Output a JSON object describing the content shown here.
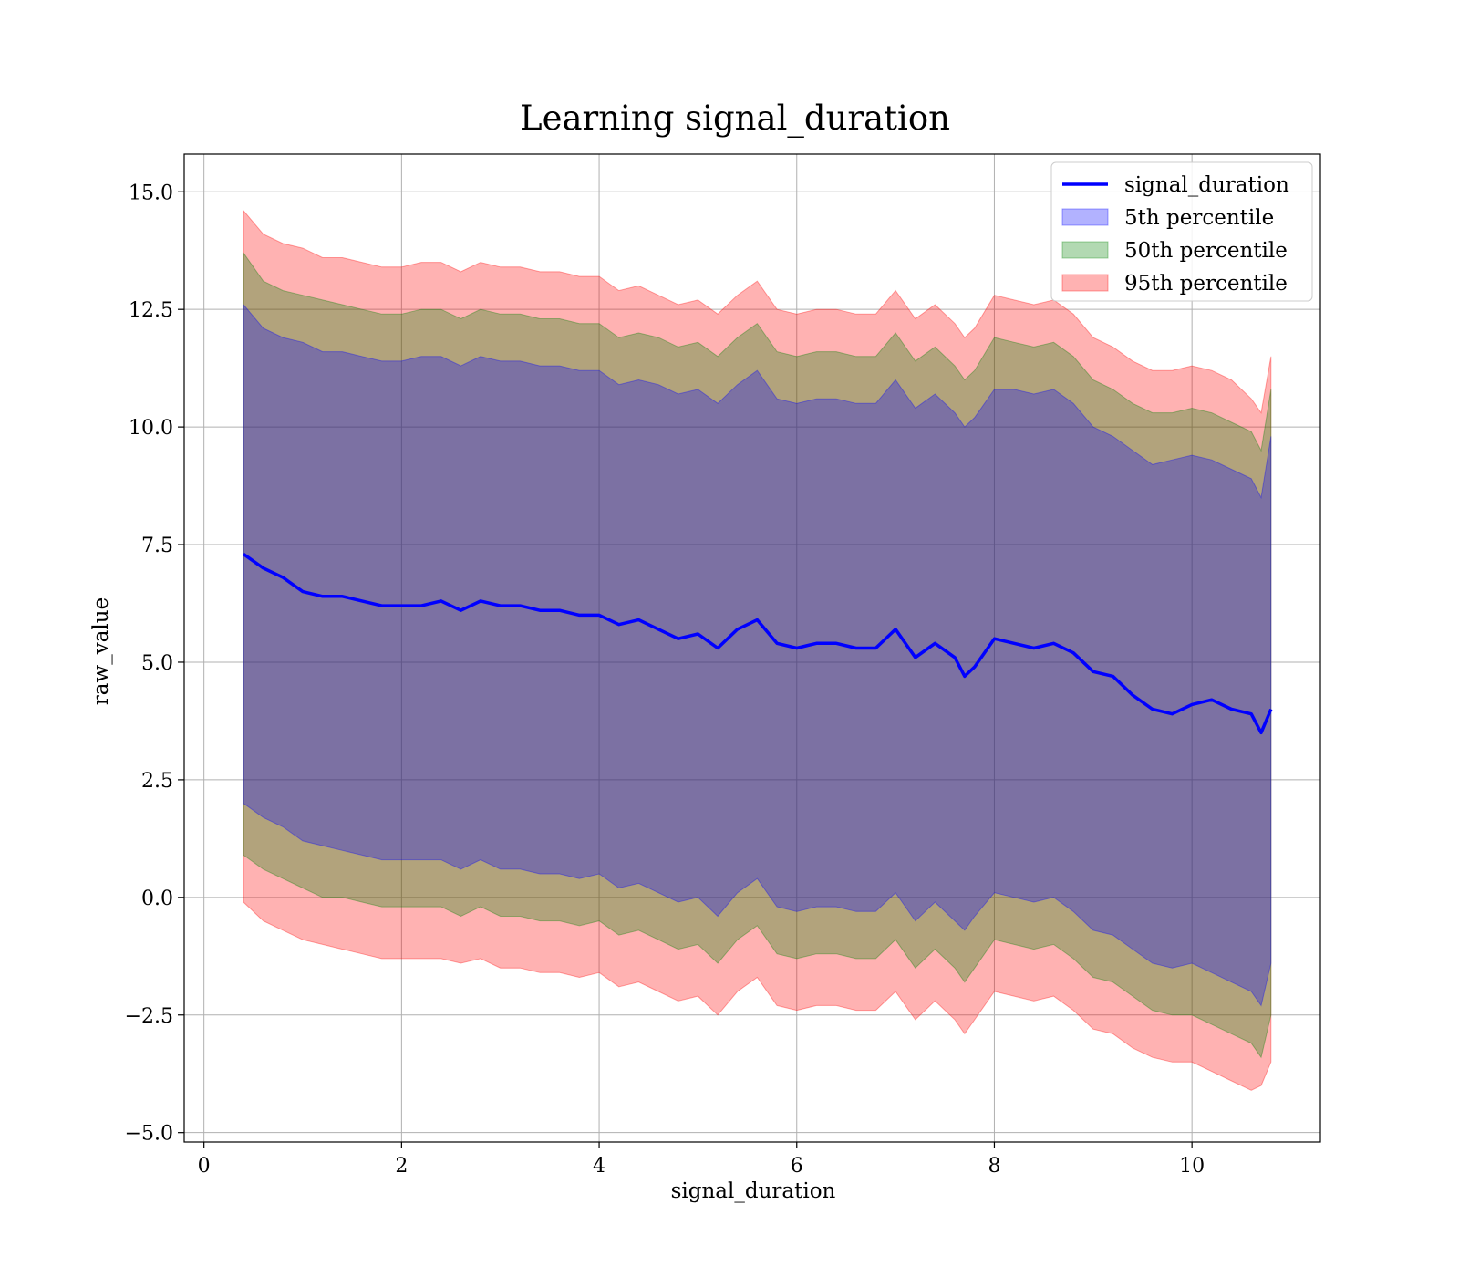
{
  "chart_data": {
    "type": "area",
    "title": "Learning signal_duration",
    "xlabel": "signal_duration",
    "ylabel": "raw_value",
    "xlim": [
      -0.2,
      11.3
    ],
    "ylim": [
      -5.2,
      15.8
    ],
    "x_ticks": [
      0,
      2,
      4,
      6,
      8,
      10
    ],
    "x_tick_labels": [
      "0",
      "2",
      "4",
      "6",
      "8",
      "10"
    ],
    "y_ticks": [
      -5.0,
      -2.5,
      0.0,
      2.5,
      5.0,
      7.5,
      10.0,
      12.5,
      15.0
    ],
    "y_tick_labels": [
      "−5.0",
      "−2.5",
      "0.0",
      "2.5",
      "5.0",
      "7.5",
      "10.0",
      "12.5",
      "15.0"
    ],
    "grid": true,
    "legend_position": "top-right",
    "x": [
      0.4,
      0.6,
      0.8,
      1.0,
      1.2,
      1.4,
      1.6,
      1.8,
      2.0,
      2.2,
      2.4,
      2.6,
      2.8,
      3.0,
      3.2,
      3.4,
      3.6,
      3.8,
      4.0,
      4.2,
      4.4,
      4.6,
      4.8,
      5.0,
      5.2,
      5.4,
      5.6,
      5.8,
      6.0,
      6.2,
      6.4,
      6.6,
      6.8,
      7.0,
      7.2,
      7.4,
      7.6,
      7.7,
      7.8,
      8.0,
      8.2,
      8.4,
      8.6,
      8.8,
      9.0,
      9.2,
      9.4,
      9.6,
      9.8,
      10.0,
      10.2,
      10.4,
      10.6,
      10.7,
      10.8
    ],
    "series": [
      {
        "name": "signal_duration",
        "kind": "line",
        "color": "#0000ff",
        "values": [
          7.3,
          7.0,
          6.8,
          6.5,
          6.4,
          6.4,
          6.3,
          6.2,
          6.2,
          6.2,
          6.3,
          6.1,
          6.3,
          6.2,
          6.2,
          6.1,
          6.1,
          6.0,
          6.0,
          5.8,
          5.9,
          5.7,
          5.5,
          5.6,
          5.3,
          5.7,
          5.9,
          5.4,
          5.3,
          5.4,
          5.4,
          5.3,
          5.3,
          5.7,
          5.1,
          5.4,
          5.1,
          4.7,
          4.9,
          5.5,
          5.4,
          5.3,
          5.4,
          5.2,
          4.8,
          4.7,
          4.3,
          4.0,
          3.9,
          4.1,
          4.2,
          4.0,
          3.9,
          3.5,
          4.0
        ]
      },
      {
        "name": "5th percentile",
        "kind": "band",
        "color": "#0000ff",
        "upper": [
          12.6,
          12.1,
          11.9,
          11.8,
          11.6,
          11.6,
          11.5,
          11.4,
          11.4,
          11.5,
          11.5,
          11.3,
          11.5,
          11.4,
          11.4,
          11.3,
          11.3,
          11.2,
          11.2,
          10.9,
          11.0,
          10.9,
          10.7,
          10.8,
          10.5,
          10.9,
          11.2,
          10.6,
          10.5,
          10.6,
          10.6,
          10.5,
          10.5,
          11.0,
          10.4,
          10.7,
          10.3,
          10.0,
          10.2,
          10.8,
          10.8,
          10.7,
          10.8,
          10.5,
          10.0,
          9.8,
          9.5,
          9.2,
          9.3,
          9.4,
          9.3,
          9.1,
          8.9,
          8.5,
          9.8
        ],
        "lower": [
          2.0,
          1.7,
          1.5,
          1.2,
          1.1,
          1.0,
          0.9,
          0.8,
          0.8,
          0.8,
          0.8,
          0.6,
          0.8,
          0.6,
          0.6,
          0.5,
          0.5,
          0.4,
          0.5,
          0.2,
          0.3,
          0.1,
          -0.1,
          0.0,
          -0.4,
          0.1,
          0.4,
          -0.2,
          -0.3,
          -0.2,
          -0.2,
          -0.3,
          -0.3,
          0.1,
          -0.5,
          -0.1,
          -0.5,
          -0.7,
          -0.4,
          0.1,
          0.0,
          -0.1,
          0.0,
          -0.3,
          -0.7,
          -0.8,
          -1.1,
          -1.4,
          -1.5,
          -1.4,
          -1.6,
          -1.8,
          -2.0,
          -2.3,
          -1.4
        ]
      },
      {
        "name": "50th percentile",
        "kind": "band",
        "color": "#008000",
        "upper": [
          13.7,
          13.1,
          12.9,
          12.8,
          12.7,
          12.6,
          12.5,
          12.4,
          12.4,
          12.5,
          12.5,
          12.3,
          12.5,
          12.4,
          12.4,
          12.3,
          12.3,
          12.2,
          12.2,
          11.9,
          12.0,
          11.9,
          11.7,
          11.8,
          11.5,
          11.9,
          12.2,
          11.6,
          11.5,
          11.6,
          11.6,
          11.5,
          11.5,
          12.0,
          11.4,
          11.7,
          11.3,
          11.0,
          11.2,
          11.9,
          11.8,
          11.7,
          11.8,
          11.5,
          11.0,
          10.8,
          10.5,
          10.3,
          10.3,
          10.4,
          10.3,
          10.1,
          9.9,
          9.5,
          10.8
        ],
        "lower": [
          0.9,
          0.6,
          0.4,
          0.2,
          0.0,
          0.0,
          -0.1,
          -0.2,
          -0.2,
          -0.2,
          -0.2,
          -0.4,
          -0.2,
          -0.4,
          -0.4,
          -0.5,
          -0.5,
          -0.6,
          -0.5,
          -0.8,
          -0.7,
          -0.9,
          -1.1,
          -1.0,
          -1.4,
          -0.9,
          -0.6,
          -1.2,
          -1.3,
          -1.2,
          -1.2,
          -1.3,
          -1.3,
          -0.9,
          -1.5,
          -1.1,
          -1.5,
          -1.8,
          -1.5,
          -0.9,
          -1.0,
          -1.1,
          -1.0,
          -1.3,
          -1.7,
          -1.8,
          -2.1,
          -2.4,
          -2.5,
          -2.5,
          -2.7,
          -2.9,
          -3.1,
          -3.4,
          -2.5
        ]
      },
      {
        "name": "95th percentile",
        "kind": "band",
        "color": "#ff0000",
        "upper": [
          14.6,
          14.1,
          13.9,
          13.8,
          13.6,
          13.6,
          13.5,
          13.4,
          13.4,
          13.5,
          13.5,
          13.3,
          13.5,
          13.4,
          13.4,
          13.3,
          13.3,
          13.2,
          13.2,
          12.9,
          13.0,
          12.8,
          12.6,
          12.7,
          12.4,
          12.8,
          13.1,
          12.5,
          12.4,
          12.5,
          12.5,
          12.4,
          12.4,
          12.9,
          12.3,
          12.6,
          12.2,
          11.9,
          12.1,
          12.8,
          12.7,
          12.6,
          12.7,
          12.4,
          11.9,
          11.7,
          11.4,
          11.2,
          11.2,
          11.3,
          11.2,
          11.0,
          10.6,
          10.3,
          11.5
        ],
        "lower": [
          -0.1,
          -0.5,
          -0.7,
          -0.9,
          -1.0,
          -1.1,
          -1.2,
          -1.3,
          -1.3,
          -1.3,
          -1.3,
          -1.4,
          -1.3,
          -1.5,
          -1.5,
          -1.6,
          -1.6,
          -1.7,
          -1.6,
          -1.9,
          -1.8,
          -2.0,
          -2.2,
          -2.1,
          -2.5,
          -2.0,
          -1.7,
          -2.3,
          -2.4,
          -2.3,
          -2.3,
          -2.4,
          -2.4,
          -2.0,
          -2.6,
          -2.2,
          -2.6,
          -2.9,
          -2.6,
          -2.0,
          -2.1,
          -2.2,
          -2.1,
          -2.4,
          -2.8,
          -2.9,
          -3.2,
          -3.4,
          -3.5,
          -3.5,
          -3.7,
          -3.9,
          -4.1,
          -4.0,
          -3.5
        ]
      }
    ]
  }
}
